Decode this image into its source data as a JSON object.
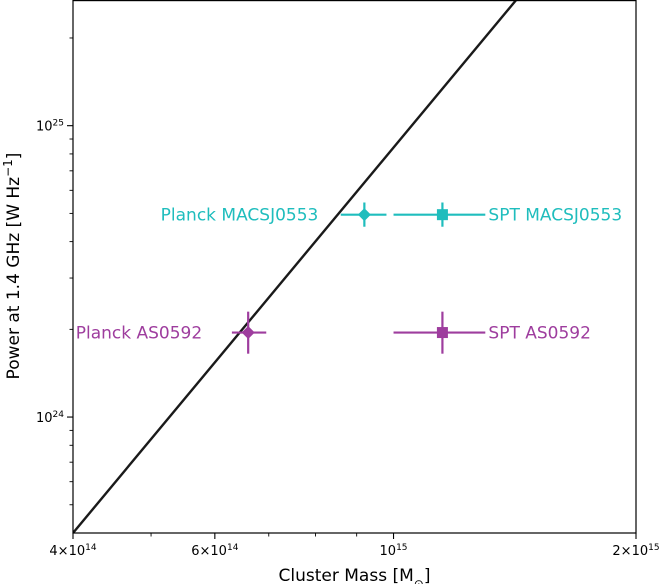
{
  "chart_data": {
    "type": "scatter",
    "title": "",
    "xlabel": "Cluster Mass [M",
    "xlabel_sub": "⊙",
    "xlabel_end": "]",
    "ylabel": "Power at 1.4 GHz [W Hz",
    "ylabel_sup": "−1",
    "ylabel_end": "]",
    "xscale": "log",
    "yscale": "log",
    "xlim": [
      400000000000000.0,
      2000000000000000.0
    ],
    "ylim": [
      4e+23,
      2.7e+25
    ],
    "grid": false,
    "x_ticks": [
      {
        "value": 400000000000000.0,
        "mant": "4×10",
        "exp": "14"
      },
      {
        "value": 600000000000000.0,
        "mant": "6×10",
        "exp": "14"
      },
      {
        "value": 1000000000000000.0,
        "mant": "10",
        "exp": "15"
      },
      {
        "value": 2000000000000000.0,
        "mant": "2×10",
        "exp": "15"
      }
    ],
    "y_ticks": [
      {
        "value": 1e+24,
        "mant": "10",
        "exp": "24"
      },
      {
        "value": 1e+25,
        "mant": "10",
        "exp": "25"
      }
    ],
    "x_minor_ticks": [
      500000000000000.0,
      700000000000000.0,
      800000000000000.0,
      900000000000000.0
    ],
    "y_minor_ticks": [
      5e+23,
      6e+23,
      7e+23,
      8e+23,
      9e+23,
      2e+24,
      3e+24,
      4e+24,
      5e+24,
      6e+24,
      7e+24,
      8e+24,
      9e+24,
      2e+25
    ],
    "relation_line": {
      "color": "#1a1a1a",
      "points": [
        [
          400000000000000.0,
          4e+23
        ],
        [
          1420000000000000.0,
          2.7e+25
        ]
      ]
    },
    "series": [
      {
        "name": "Planck MACSJ0553",
        "color": "#1fbdbd",
        "marker": "diamond",
        "x": 920000000000000.0,
        "y": 4.95e+24,
        "x_err": [
          860000000000000.0,
          980000000000000.0
        ],
        "y_err": [
          4.5e+24,
          5.45e+24
        ],
        "label_side": "left"
      },
      {
        "name": "SPT MACSJ0553",
        "color": "#1fbdbd",
        "marker": "square",
        "x": 1150000000000000.0,
        "y": 4.95e+24,
        "x_err": [
          1000000000000000.0,
          1300000000000000.0
        ],
        "y_err": [
          4.5e+24,
          5.45e+24
        ],
        "label_side": "right"
      },
      {
        "name": "Planck AS0592",
        "color": "#9e3d9e",
        "marker": "diamond",
        "x": 660000000000000.0,
        "y": 1.95e+24,
        "x_err": [
          630000000000000.0,
          695000000000000.0
        ],
        "y_err": [
          1.65e+24,
          2.3e+24
        ],
        "label_side": "left"
      },
      {
        "name": "SPT AS0592",
        "color": "#9e3d9e",
        "marker": "square",
        "x": 1150000000000000.0,
        "y": 1.95e+24,
        "x_err": [
          1000000000000000.0,
          1300000000000000.0
        ],
        "y_err": [
          1.65e+24,
          2.3e+24
        ],
        "label_side": "right"
      }
    ]
  }
}
